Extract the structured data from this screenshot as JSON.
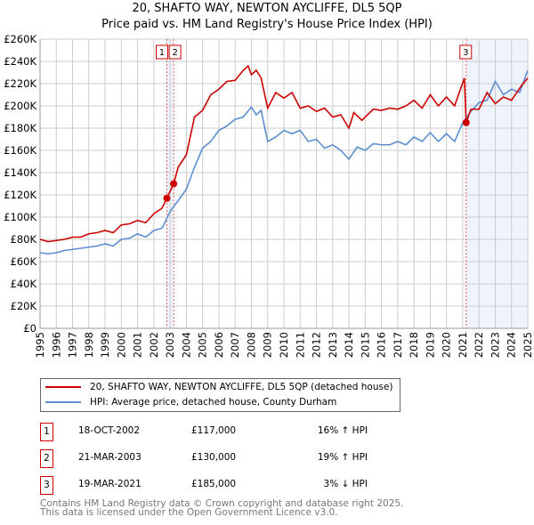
{
  "chart_data": {
    "type": "line",
    "title": "20, SHAFTO WAY, NEWTON AYCLIFFE, DL5 5QP",
    "subtitle": "Price paid vs. HM Land Registry's House Price Index (HPI)",
    "xlim": [
      1995,
      2025
    ],
    "ylim": [
      0,
      260000
    ],
    "y_ticks": [
      0,
      20000,
      40000,
      60000,
      80000,
      100000,
      120000,
      140000,
      160000,
      180000,
      200000,
      220000,
      240000,
      260000
    ],
    "y_tick_labels": [
      "£0",
      "£20K",
      "£40K",
      "£60K",
      "£80K",
      "£100K",
      "£120K",
      "£140K",
      "£160K",
      "£180K",
      "£200K",
      "£220K",
      "£240K",
      "£260K"
    ],
    "x_ticks": [
      "1995",
      "1996",
      "1997",
      "1998",
      "1999",
      "2000",
      "2001",
      "2002",
      "2003",
      "2004",
      "2005",
      "2006",
      "2007",
      "2008",
      "2009",
      "2010",
      "2011",
      "2012",
      "2013",
      "2014",
      "2015",
      "2016",
      "2017",
      "2018",
      "2019",
      "2020",
      "2021",
      "2022",
      "2023",
      "2024",
      "2025"
    ],
    "grid": true,
    "series": [
      {
        "name": "20, SHAFTO WAY, NEWTON AYCLIFFE, DL5 5QP (detached house)",
        "color": "#cc0000",
        "points": [
          [
            1995,
            80
          ],
          [
            1995.5,
            78
          ],
          [
            1996,
            79
          ],
          [
            1996.5,
            80
          ],
          [
            1997,
            82
          ],
          [
            1997.5,
            82
          ],
          [
            1998,
            85
          ],
          [
            1998.5,
            86
          ],
          [
            1999,
            88
          ],
          [
            1999.5,
            86
          ],
          [
            2000,
            93
          ],
          [
            2000.5,
            94
          ],
          [
            2001,
            97
          ],
          [
            2001.5,
            95
          ],
          [
            2002,
            103
          ],
          [
            2002.5,
            108
          ],
          [
            2002.8,
            117
          ],
          [
            2003.22,
            130
          ],
          [
            2003.5,
            145
          ],
          [
            2004,
            156
          ],
          [
            2004.5,
            190
          ],
          [
            2005,
            196
          ],
          [
            2005.5,
            210
          ],
          [
            2006,
            215
          ],
          [
            2006.5,
            222
          ],
          [
            2007,
            223
          ],
          [
            2007.5,
            232
          ],
          [
            2007.8,
            236
          ],
          [
            2008,
            228
          ],
          [
            2008.3,
            232
          ],
          [
            2008.6,
            225
          ],
          [
            2009,
            198
          ],
          [
            2009.5,
            212
          ],
          [
            2010,
            207
          ],
          [
            2010.5,
            212
          ],
          [
            2011,
            198
          ],
          [
            2011.5,
            200
          ],
          [
            2012,
            195
          ],
          [
            2012.5,
            198
          ],
          [
            2013,
            190
          ],
          [
            2013.5,
            192
          ],
          [
            2014,
            180
          ],
          [
            2014.3,
            194
          ],
          [
            2014.8,
            187
          ],
          [
            2015,
            190
          ],
          [
            2015.5,
            197
          ],
          [
            2016,
            196
          ],
          [
            2016.5,
            198
          ],
          [
            2017,
            197
          ],
          [
            2017.5,
            200
          ],
          [
            2018,
            205
          ],
          [
            2018.5,
            198
          ],
          [
            2019,
            210
          ],
          [
            2019.5,
            200
          ],
          [
            2020,
            208
          ],
          [
            2020.5,
            200
          ],
          [
            2021.1,
            225
          ],
          [
            2021.21,
            185
          ],
          [
            2021.5,
            197
          ],
          [
            2022,
            197
          ],
          [
            2022.5,
            212
          ],
          [
            2023,
            202
          ],
          [
            2023.5,
            208
          ],
          [
            2024,
            205
          ],
          [
            2024.6,
            218
          ],
          [
            2025,
            225
          ]
        ]
      },
      {
        "name": "HPI: Average price, detached house, County Durham",
        "color": "#5b8fd0",
        "points": [
          [
            1995,
            68
          ],
          [
            1995.5,
            67
          ],
          [
            1996,
            68
          ],
          [
            1996.5,
            70
          ],
          [
            1997,
            71
          ],
          [
            1997.5,
            72
          ],
          [
            1998,
            73
          ],
          [
            1998.5,
            74
          ],
          [
            1999,
            76
          ],
          [
            1999.5,
            74
          ],
          [
            2000,
            80
          ],
          [
            2000.5,
            81
          ],
          [
            2001,
            85
          ],
          [
            2001.5,
            82
          ],
          [
            2002,
            88
          ],
          [
            2002.5,
            90
          ],
          [
            2003,
            105
          ],
          [
            2003.5,
            115
          ],
          [
            2004,
            125
          ],
          [
            2004.5,
            145
          ],
          [
            2005,
            162
          ],
          [
            2005.5,
            168
          ],
          [
            2006,
            178
          ],
          [
            2006.5,
            182
          ],
          [
            2007,
            188
          ],
          [
            2007.5,
            190
          ],
          [
            2008,
            199
          ],
          [
            2008.3,
            192
          ],
          [
            2008.6,
            196
          ],
          [
            2009,
            168
          ],
          [
            2009.5,
            172
          ],
          [
            2010,
            178
          ],
          [
            2010.5,
            175
          ],
          [
            2011,
            178
          ],
          [
            2011.5,
            168
          ],
          [
            2012,
            170
          ],
          [
            2012.5,
            162
          ],
          [
            2013,
            165
          ],
          [
            2013.5,
            160
          ],
          [
            2014,
            152
          ],
          [
            2014.5,
            163
          ],
          [
            2015,
            160
          ],
          [
            2015.5,
            166
          ],
          [
            2016,
            165
          ],
          [
            2016.5,
            165
          ],
          [
            2017,
            168
          ],
          [
            2017.5,
            165
          ],
          [
            2018,
            172
          ],
          [
            2018.5,
            168
          ],
          [
            2019,
            176
          ],
          [
            2019.5,
            168
          ],
          [
            2020,
            175
          ],
          [
            2020.5,
            168
          ],
          [
            2021,
            185
          ],
          [
            2021.5,
            195
          ],
          [
            2022,
            203
          ],
          [
            2022.5,
            205
          ],
          [
            2023,
            222
          ],
          [
            2023.5,
            210
          ],
          [
            2024,
            215
          ],
          [
            2024.5,
            212
          ],
          [
            2025,
            232
          ]
        ]
      }
    ],
    "sales": [
      {
        "label": "1",
        "x": 2002.8,
        "y": 117000
      },
      {
        "label": "2",
        "x": 2003.22,
        "y": 130000
      },
      {
        "label": "3",
        "x": 2021.21,
        "y": 185000
      }
    ]
  },
  "legend": {
    "items": [
      "20, SHAFTO WAY, NEWTON AYCLIFFE, DL5 5QP (detached house)",
      "HPI: Average price, detached house, County Durham"
    ]
  },
  "table": [
    {
      "n": "1",
      "date": "18-OCT-2002",
      "price": "£117,000",
      "hpi": "16% ↑ HPI"
    },
    {
      "n": "2",
      "date": "21-MAR-2003",
      "price": "£130,000",
      "hpi": "19% ↑ HPI"
    },
    {
      "n": "3",
      "date": "19-MAR-2021",
      "price": "£185,000",
      "hpi": "3% ↓ HPI"
    }
  ],
  "footer": {
    "line1": "Contains HM Land Registry data © Crown copyright and database right 2025.",
    "line2": "This data is licensed under the Open Government Licence v3.0."
  }
}
